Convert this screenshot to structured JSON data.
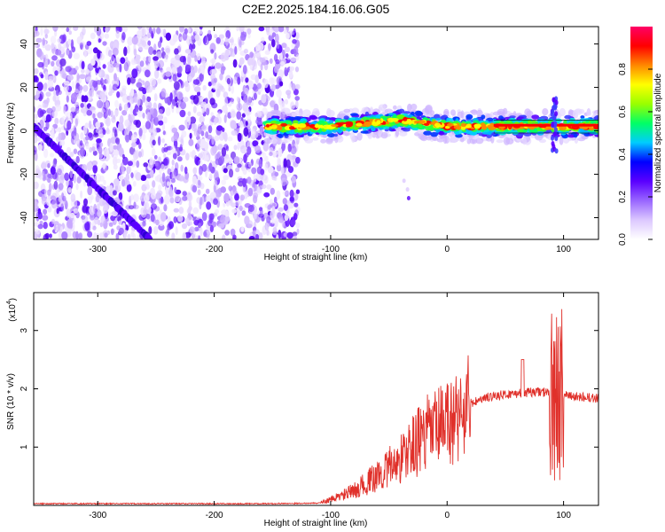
{
  "title": "C2E2.2025.184.16.06.G05",
  "chart_data": [
    {
      "type": "heatmap",
      "xlabel": "Height of straight line (km)",
      "ylabel": "Frequency (Hz)",
      "xlim": [
        -355,
        130
      ],
      "ylim": [
        -50,
        48
      ],
      "xticks": [
        -300,
        -200,
        -100,
        0,
        100
      ],
      "yticks": [
        -40,
        -20,
        0,
        20,
        40
      ],
      "colorbar": {
        "label": "Normalized spectral amplitude",
        "range": [
          0.0,
          1.0
        ],
        "ticks": [
          0.0,
          0.2,
          0.4,
          0.6,
          0.8
        ],
        "colors": [
          "#ffffff",
          "#dcc8ff",
          "#9966ff",
          "#5a00ff",
          "#0000ff",
          "#00ccff",
          "#00ff66",
          "#99ff00",
          "#ffff00",
          "#ff8800",
          "#ff0000",
          "#ff0066"
        ]
      },
      "features": [
        {
          "name": "noise-region",
          "x_range": [
            -355,
            -128
          ],
          "freq_range": [
            -50,
            48
          ]
        },
        {
          "name": "tone-band",
          "x_range": [
            -155,
            130
          ],
          "center_freq": [
            [
              -155,
              2
            ],
            [
              -100,
              2
            ],
            [
              -40,
              5
            ],
            [
              0,
              2
            ],
            [
              40,
              2
            ],
            [
              130,
              2
            ]
          ]
        },
        {
          "name": "diagonal-streak",
          "points": [
            [
              -355,
              2
            ],
            [
              -255,
              -50
            ]
          ]
        }
      ]
    },
    {
      "type": "line",
      "xlabel": "Height of straight line (km)",
      "ylabel": "SNR (10 * v/v)",
      "y_multiplier": "(x10",
      "y_multiplier_exp": "4",
      "xlim": [
        -355,
        130
      ],
      "ylim": [
        0,
        3.65
      ],
      "xticks": [
        -300,
        -200,
        -100,
        0,
        100
      ],
      "yticks": [
        1,
        2,
        3
      ],
      "color": "#e0302a",
      "series_envelope": [
        {
          "x": -355,
          "y": 0.03
        },
        {
          "x": -150,
          "y": 0.03
        },
        {
          "x": -110,
          "y": 0.04
        },
        {
          "x": -100,
          "y": 0.1
        },
        {
          "x": -80,
          "y": 0.25
        },
        {
          "x": -60,
          "y": 0.5
        },
        {
          "x": -40,
          "y": 0.8
        },
        {
          "x": -20,
          "y": 1.2
        },
        {
          "x": 0,
          "y": 1.4
        },
        {
          "x": 10,
          "y": 1.55
        },
        {
          "x": 20,
          "y": 1.75
        },
        {
          "x": 40,
          "y": 1.88
        },
        {
          "x": 60,
          "y": 1.92
        },
        {
          "x": 80,
          "y": 1.95
        },
        {
          "x": 95,
          "y": 1.9
        },
        {
          "x": 110,
          "y": 1.86
        },
        {
          "x": 130,
          "y": 1.84
        }
      ],
      "spikes": [
        {
          "x": 65,
          "y": 2.5
        },
        {
          "x": 93,
          "y": 3.6
        },
        {
          "x": 96,
          "y": 0.2
        },
        {
          "x": 98,
          "y": 3.1
        }
      ]
    }
  ]
}
